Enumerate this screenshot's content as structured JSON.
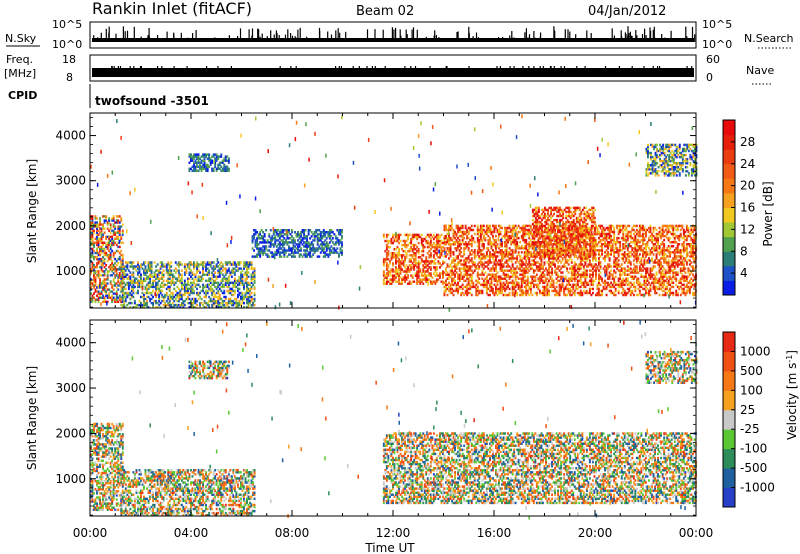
{
  "header": {
    "title": "Rankin Inlet (fitACF)",
    "beam": "Beam 02",
    "date": "04/Jan/2012"
  },
  "strip_noise": {
    "left_label": "N.Sky",
    "right_label": "N.Search",
    "left_ticks": [
      "10^5",
      "10^0"
    ],
    "right_ticks": [
      "10^5",
      "10^0"
    ]
  },
  "strip_freq": {
    "left_label": "Freq.",
    "left_unit": "[MHz]",
    "right_label": "Nave",
    "left_ticks": [
      "18",
      "8"
    ],
    "right_ticks": [
      "60",
      "0"
    ]
  },
  "strip_cpid": {
    "label": "CPID",
    "mode": "twofsound -3501"
  },
  "chart_data": [
    {
      "type": "heatmap",
      "panel": "power",
      "ylabel": "Slant Range [km]",
      "xlabel": "",
      "ylim": [
        180,
        4500
      ],
      "yticks": [
        "1000",
        "2000",
        "3000",
        "4000"
      ],
      "xlim_hours": [
        0,
        24
      ],
      "colorbar": {
        "label": "Power [dB]",
        "ticks": [
          "4",
          "8",
          "12",
          "16",
          "20",
          "24",
          "28"
        ],
        "colors": [
          "#0a1ee6",
          "#1e50c8",
          "#2c7d78",
          "#50a050",
          "#a0c832",
          "#f0c81e",
          "#f5a01e",
          "#f57814",
          "#f05a14",
          "#eb3c0f",
          "#e61e0a",
          "#e60a0a"
        ]
      },
      "regions": [
        {
          "t0": 0.0,
          "t1": 1.3,
          "r0": 300,
          "r1": 2200,
          "level": "mixed"
        },
        {
          "t0": 1.2,
          "t1": 6.5,
          "r0": 180,
          "r1": 1200,
          "level": "low-mid"
        },
        {
          "t0": 3.9,
          "t1": 5.5,
          "r0": 3200,
          "r1": 3600,
          "level": "low"
        },
        {
          "t0": 6.4,
          "t1": 10.0,
          "r0": 1300,
          "r1": 1900,
          "level": "low"
        },
        {
          "t0": 11.6,
          "t1": 14.0,
          "r0": 700,
          "r1": 1800,
          "level": "high"
        },
        {
          "t0": 14.0,
          "t1": 24.0,
          "r0": 450,
          "r1": 2000,
          "level": "high"
        },
        {
          "t0": 17.5,
          "t1": 20.0,
          "r0": 1300,
          "r1": 2400,
          "level": "high"
        },
        {
          "t0": 22.0,
          "t1": 24.0,
          "r0": 3100,
          "r1": 3800,
          "level": "low-mid"
        }
      ]
    },
    {
      "type": "heatmap",
      "panel": "velocity",
      "ylabel": "Slant Range [km]",
      "xlabel": "Time UT",
      "ylim": [
        180,
        4500
      ],
      "yticks": [
        "1000",
        "2000",
        "3000",
        "4000"
      ],
      "xticks": [
        "00:00",
        "04:00",
        "08:00",
        "12:00",
        "16:00",
        "20:00",
        "00:00"
      ],
      "xlim_hours": [
        0,
        24
      ],
      "colorbar": {
        "label": "Velocity [m s",
        "label_sup": "-1",
        "label_end": "]",
        "ticks": [
          "1000",
          "500",
          "100",
          "25",
          "-25",
          "-100",
          "-500",
          "-1000"
        ],
        "colors": [
          "#2840c8",
          "#2060a0",
          "#2c8c5a",
          "#5ac832",
          "#c8c8c8",
          "#f5a01e",
          "#f57814",
          "#f05014",
          "#e62814"
        ]
      },
      "regions": [
        {
          "t0": 0.0,
          "t1": 1.3,
          "r0": 300,
          "r1": 2200,
          "level": "mixed"
        },
        {
          "t0": 1.2,
          "t1": 6.5,
          "r0": 180,
          "r1": 1200,
          "level": "mixed"
        },
        {
          "t0": 3.9,
          "t1": 5.5,
          "r0": 3200,
          "r1": 3600,
          "level": "mixed"
        },
        {
          "t0": 11.6,
          "t1": 24.0,
          "r0": 450,
          "r1": 2000,
          "level": "mixed"
        },
        {
          "t0": 22.0,
          "t1": 24.0,
          "r0": 3100,
          "r1": 3800,
          "level": "mixed"
        }
      ]
    }
  ]
}
